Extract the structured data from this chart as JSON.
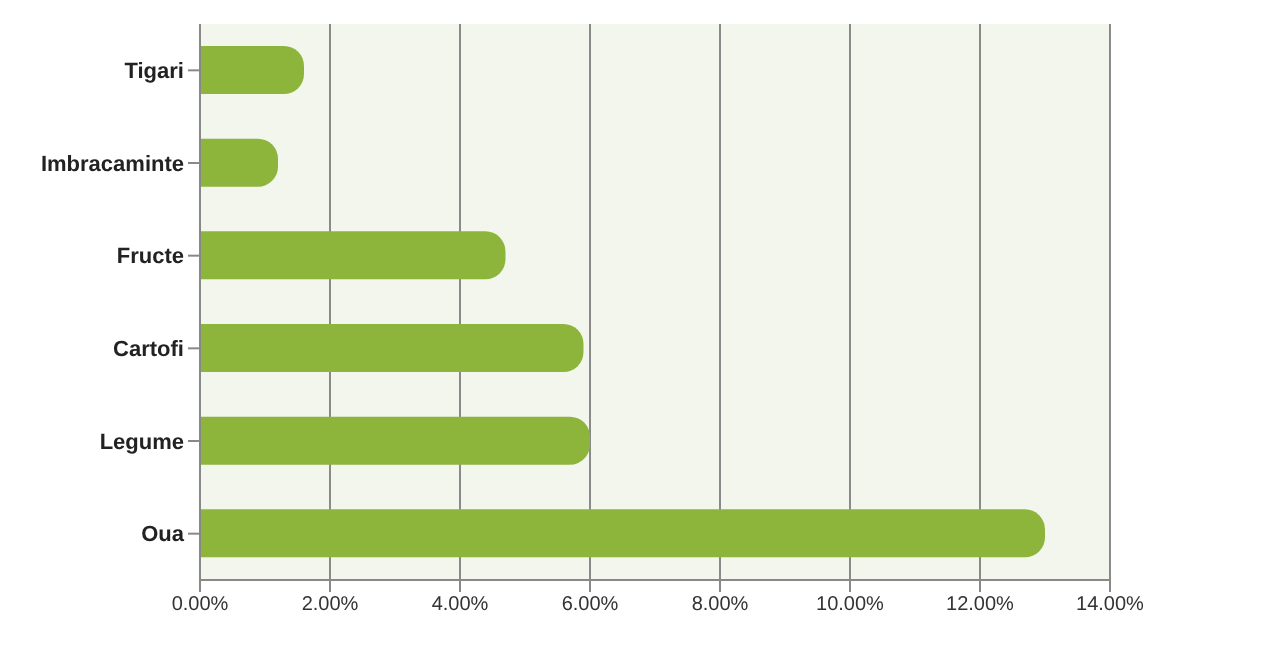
{
  "chart_data": {
    "type": "bar",
    "orientation": "horizontal",
    "categories": [
      "Tigari",
      "Imbracaminte",
      "Fructe",
      "Cartofi",
      "Legume",
      "Oua"
    ],
    "values": [
      1.6,
      1.2,
      4.7,
      5.9,
      6.0,
      13.0
    ],
    "color": "#8db53c",
    "xlim": [
      0,
      14
    ],
    "xticks": [
      {
        "value": 0,
        "label": "0.00%"
      },
      {
        "value": 2,
        "label": "2.00%"
      },
      {
        "value": 4,
        "label": "4.00%"
      },
      {
        "value": 6,
        "label": "6.00%"
      },
      {
        "value": 8,
        "label": "8.00%"
      },
      {
        "value": 10,
        "label": "10.00%"
      },
      {
        "value": 12,
        "label": "12.00%"
      },
      {
        "value": 14,
        "label": "14.00%"
      }
    ],
    "grid": "x"
  }
}
